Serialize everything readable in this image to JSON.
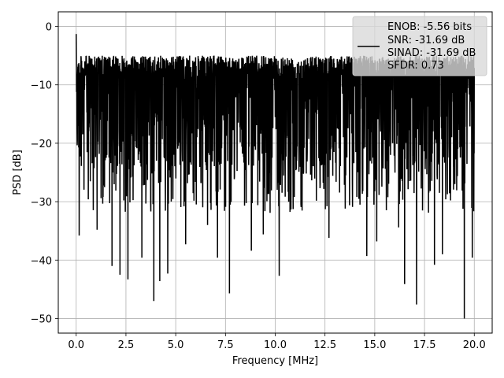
{
  "chart_data": {
    "type": "line",
    "title": "",
    "xlabel": "Frequency [MHz]",
    "ylabel": "PSD [dB]",
    "xlim": [
      -0.9,
      20.9
    ],
    "ylim": [
      -52.5,
      2.5
    ],
    "x_ticks": [
      0.0,
      2.5,
      5.0,
      7.5,
      10.0,
      12.5,
      15.0,
      17.5,
      20.0
    ],
    "x_tick_labels": [
      "0.0",
      "2.5",
      "5.0",
      "7.5",
      "10.0",
      "12.5",
      "15.0",
      "17.5",
      "20.0"
    ],
    "y_ticks": [
      0,
      -10,
      -20,
      -30,
      -40,
      -50
    ],
    "y_tick_labels": [
      "0",
      "−10",
      "−20",
      "−30",
      "−40",
      "−50"
    ],
    "grid": true,
    "legend_placement": "top-right",
    "line_color": "#000000",
    "series": [
      {
        "legend_lines": [
          "ENOB: -5.56 bits",
          "SNR: -31.69 dB",
          "SINAD: -31.69 dB",
          "SFDR: 0.73"
        ],
        "x_range": [
          0.0,
          20.0
        ],
        "y_band_range": [
          -50,
          -1.3
        ],
        "noise_floor_typical": [
          -24,
          -5
        ],
        "spikes": [
          {
            "x": 0.0,
            "y": -1.3
          },
          {
            "x": 0.15,
            "y": -35.8
          },
          {
            "x": 1.05,
            "y": -34.8
          },
          {
            "x": 1.8,
            "y": -41.0
          },
          {
            "x": 2.2,
            "y": -42.5
          },
          {
            "x": 2.6,
            "y": -43.3
          },
          {
            "x": 3.3,
            "y": -39.6
          },
          {
            "x": 3.9,
            "y": -47.0
          },
          {
            "x": 4.2,
            "y": -43.6
          },
          {
            "x": 4.6,
            "y": -42.3
          },
          {
            "x": 5.5,
            "y": -37.3
          },
          {
            "x": 6.6,
            "y": -34.0
          },
          {
            "x": 7.1,
            "y": -39.6
          },
          {
            "x": 7.7,
            "y": -45.7
          },
          {
            "x": 8.8,
            "y": -38.4
          },
          {
            "x": 9.4,
            "y": -35.6
          },
          {
            "x": 10.2,
            "y": -42.7
          },
          {
            "x": 12.7,
            "y": -36.2
          },
          {
            "x": 14.6,
            "y": -39.3
          },
          {
            "x": 15.1,
            "y": -36.8
          },
          {
            "x": 16.2,
            "y": -34.4
          },
          {
            "x": 16.5,
            "y": -44.1
          },
          {
            "x": 17.1,
            "y": -47.6
          },
          {
            "x": 18.0,
            "y": -40.8
          },
          {
            "x": 18.4,
            "y": -39.0
          },
          {
            "x": 19.5,
            "y": -50.0
          },
          {
            "x": 19.9,
            "y": -39.6
          }
        ]
      }
    ]
  }
}
